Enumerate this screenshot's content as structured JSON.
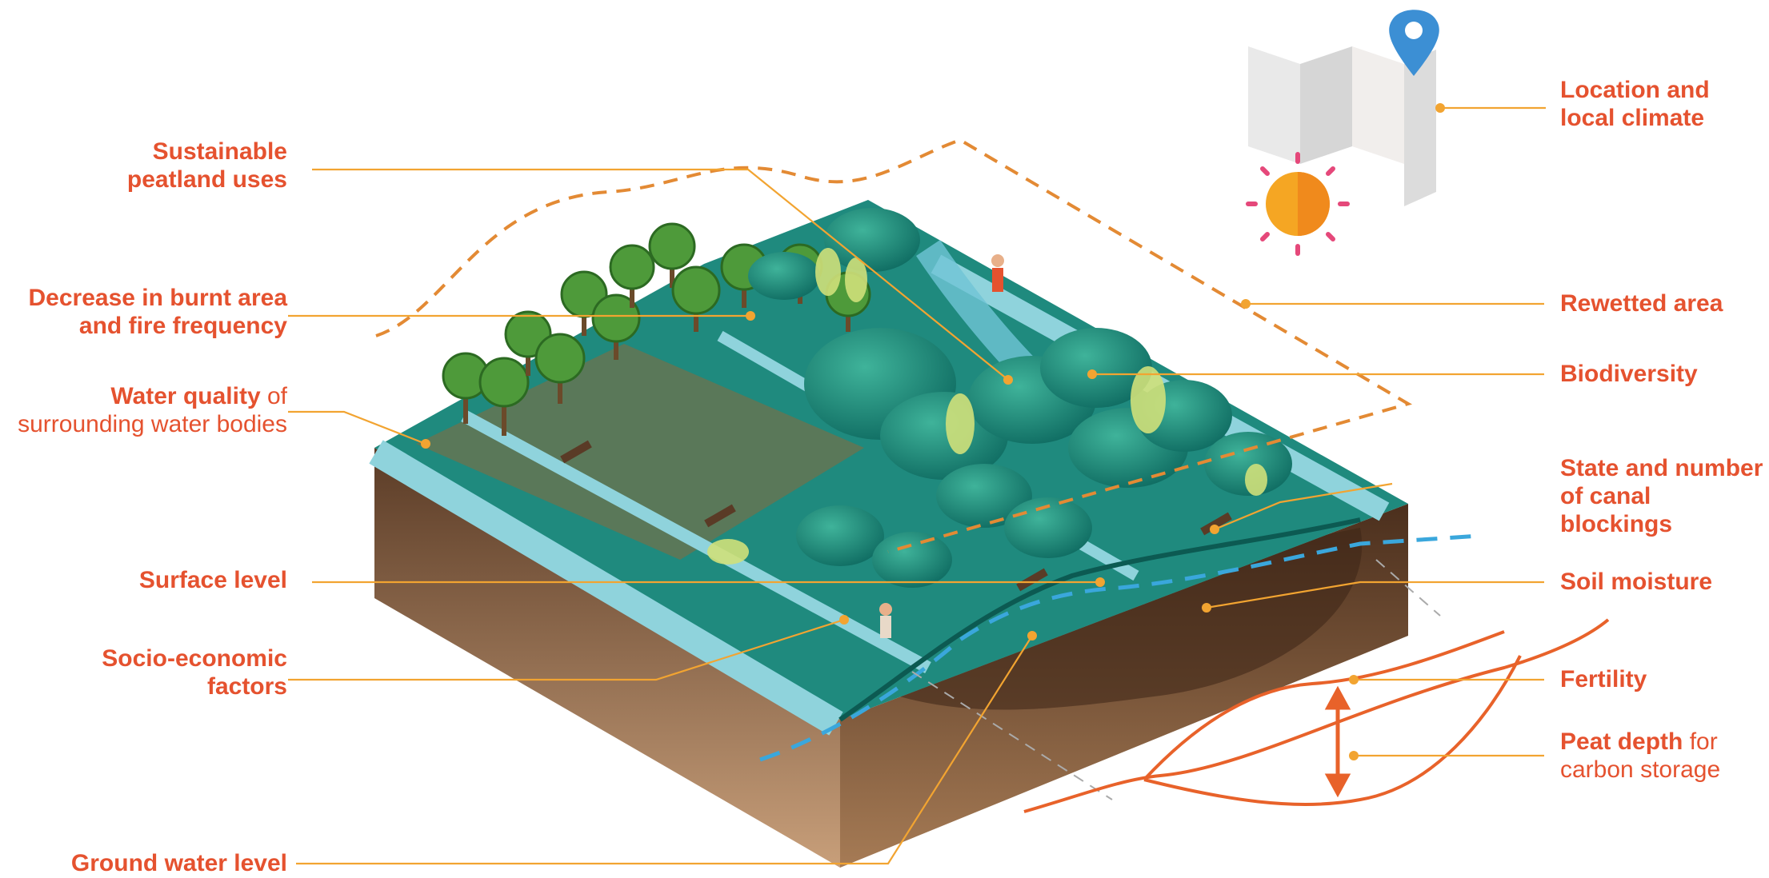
{
  "colors": {
    "label_text": "#e5522f",
    "leader_line": "#f2a431",
    "rewetted_outline": "#e38a34",
    "water_table": "#3aa7dc",
    "curve": "#e8622a",
    "soil": "#7a5236",
    "surface": "#1f8a7e",
    "canal_water": "#8fd3dc"
  },
  "icons": [
    "map-icon",
    "location-pin-icon",
    "sun-icon",
    "double-arrow-icon"
  ],
  "labels": {
    "sustainable_1": "Sustainable",
    "sustainable_2": "peatland uses",
    "burnt_1": "Decrease in burnt area",
    "burnt_2": "and fire frequency",
    "water_quality_bold": "Water quality",
    "water_quality_rest": " of",
    "water_quality_2": "surrounding water bodies",
    "surface_level": "Surface level",
    "socio_1": "Socio-economic",
    "socio_2": "factors",
    "ground_water": "Ground water level",
    "location_1": "Location and",
    "location_2": "local climate",
    "rewetted": "Rewetted area",
    "biodiversity": "Biodiversity",
    "canal_1": "State and number",
    "canal_2": "of canal blockings",
    "soil_moisture": "Soil moisture",
    "fertility": "Fertility",
    "peat_depth_bold": "Peat depth",
    "peat_depth_rest": " for",
    "peat_depth_2": "carbon storage"
  }
}
